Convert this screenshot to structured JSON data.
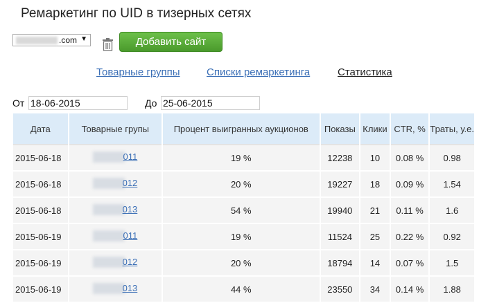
{
  "header": {
    "title": "Ремаркетинг по UID в тизерных сетях"
  },
  "toolbar": {
    "site_domain": ".com",
    "add_site_label": "Добавить сайт"
  },
  "nav": {
    "items": [
      {
        "label": "Товарные группы",
        "active": false
      },
      {
        "label": "Списки ремаркетинга",
        "active": false
      },
      {
        "label": "Статистика",
        "active": true
      }
    ]
  },
  "filters": {
    "from_label": "От",
    "from_value": "18-06-2015",
    "to_label": "До",
    "to_value": "25-06-2015"
  },
  "table": {
    "headers": [
      "Дата",
      "Товарные групы",
      "Процент выигранных аукционов",
      "Показы",
      "Клики",
      "CTR, %",
      "Траты, у.е."
    ],
    "rows": [
      {
        "date": "2015-06-18",
        "group": "011",
        "win": "19 %",
        "shows": "12238",
        "clicks": "10",
        "ctr": "0.08 %",
        "spend": "0.98"
      },
      {
        "date": "2015-06-18",
        "group": "012",
        "win": "20 %",
        "shows": "19227",
        "clicks": "18",
        "ctr": "0.09 %",
        "spend": "1.54"
      },
      {
        "date": "2015-06-18",
        "group": "013",
        "win": "54 %",
        "shows": "19940",
        "clicks": "21",
        "ctr": "0.11 %",
        "spend": "1.6"
      },
      {
        "date": "2015-06-19",
        "group": "011",
        "win": "19 %",
        "shows": "11524",
        "clicks": "25",
        "ctr": "0.22 %",
        "spend": "0.92"
      },
      {
        "date": "2015-06-19",
        "group": "012",
        "win": "20 %",
        "shows": "18794",
        "clicks": "14",
        "ctr": "0.07 %",
        "spend": "1.5"
      },
      {
        "date": "2015-06-19",
        "group": "013",
        "win": "44 %",
        "shows": "23550",
        "clicks": "34",
        "ctr": "0.14 %",
        "spend": "1.88"
      }
    ]
  }
}
